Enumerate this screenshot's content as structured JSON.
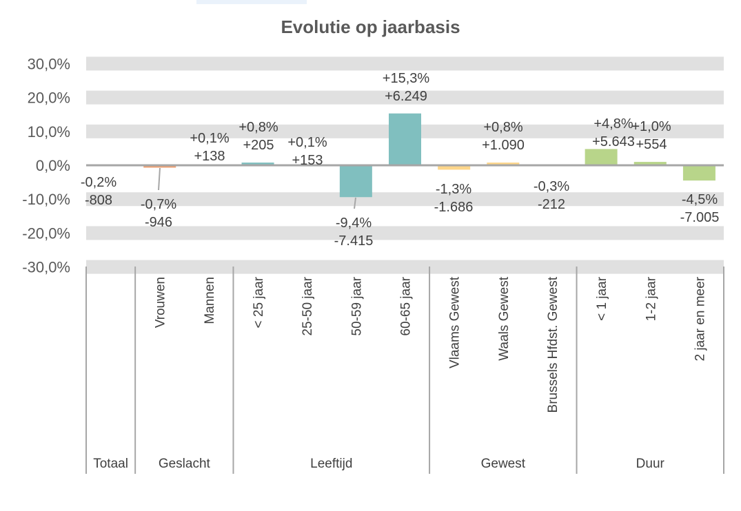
{
  "chart_data": {
    "type": "bar",
    "title": "Evolutie op jaarbasis",
    "xlabel": "",
    "ylabel": "",
    "ylim": [
      -30,
      30
    ],
    "y_ticks": [
      "30,0%",
      "20,0%",
      "10,0%",
      "0,0%",
      "-10,0%",
      "-20,0%",
      "-30,0%"
    ],
    "y_tick_values": [
      30,
      20,
      10,
      0,
      -10,
      -20,
      -30
    ],
    "grid": "alternating horizontal bands",
    "categories": [
      "",
      "Vrouwen",
      "Mannen",
      "< 25 jaar",
      "25-50 jaar",
      "50-59 jaar",
      "60-65 jaar",
      "Vlaams Gewest",
      "Waals Gewest",
      "Brussels Hfdst. Gewest",
      "< 1 jaar",
      "1-2 jaar",
      "2 jaar en meer"
    ],
    "groups": [
      {
        "label": "Totaal",
        "count": 1,
        "color": "#9e9e9e"
      },
      {
        "label": "Geslacht",
        "count": 2,
        "color": "#F0A070"
      },
      {
        "label": "Leeftijd",
        "count": 4,
        "color": "#80BFBF"
      },
      {
        "label": "Gewest",
        "count": 3,
        "color": "#FDD68A"
      },
      {
        "label": "Duur",
        "count": 3,
        "color": "#B8D58A"
      }
    ],
    "values": [
      -0.2,
      -0.7,
      0.1,
      0.8,
      0.1,
      -9.4,
      15.3,
      -1.3,
      0.8,
      -0.3,
      4.8,
      1.0,
      -4.5
    ],
    "pct_labels": [
      "-0,2%",
      "-0,7%",
      "+0,1%",
      "+0,8%",
      "+0,1%",
      "-9,4%",
      "+15,3%",
      "-1,3%",
      "+0,8%",
      "-0,3%",
      "+4,8%",
      "+1,0%",
      "-4,5%"
    ],
    "count_labels": [
      "-808",
      "-946",
      "+138",
      "+205",
      "+153",
      "-7.415",
      "+6.249",
      "-1.686",
      "+1.090",
      "-212",
      "+5.643",
      "+554",
      "-7.005"
    ]
  }
}
